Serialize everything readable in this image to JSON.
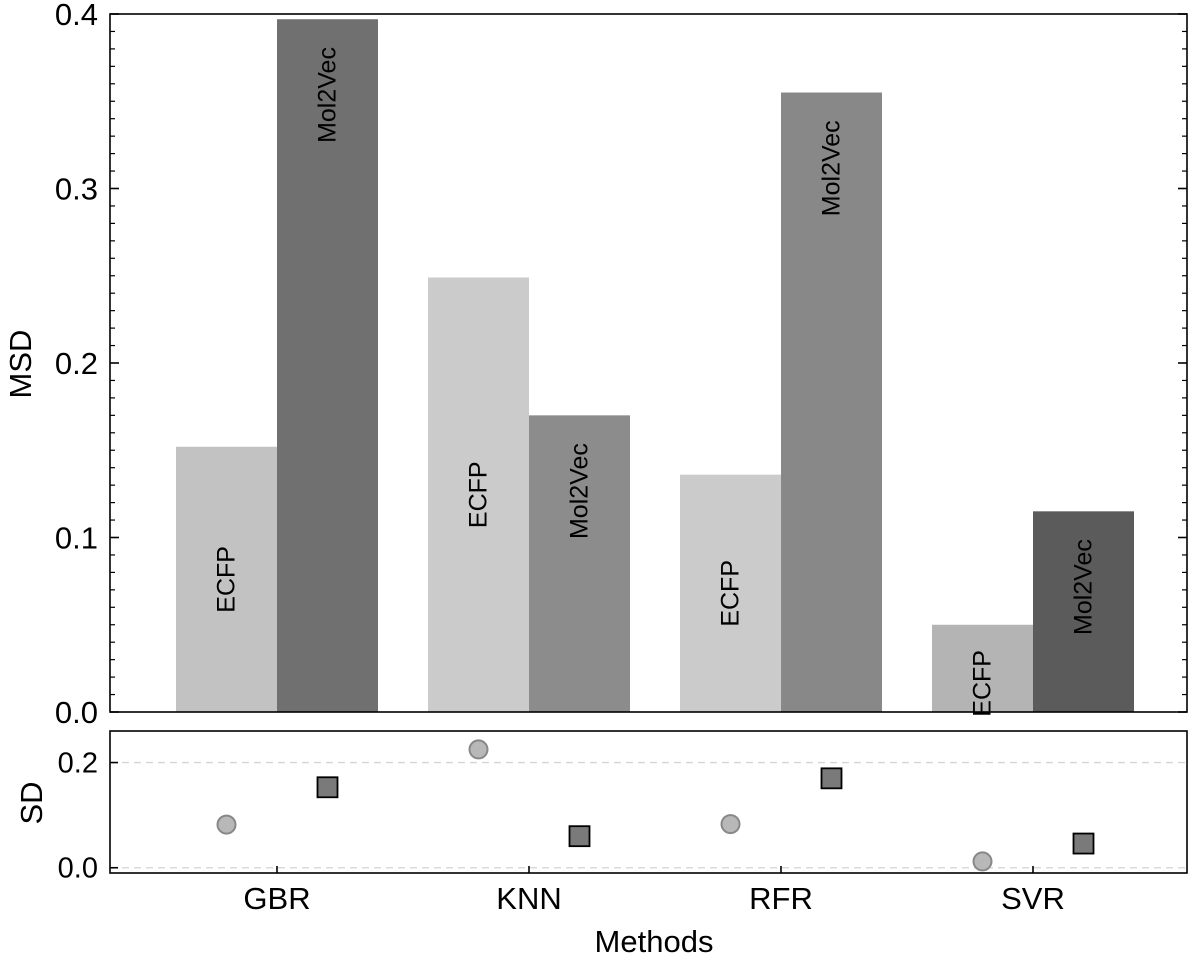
{
  "chart_data": {
    "type": "bar",
    "xlabel": "Methods",
    "categories": [
      "GBR",
      "KNN",
      "RFR",
      "SVR"
    ],
    "top_panel": {
      "ylabel": "MSD",
      "ylim": [
        0,
        0.4
      ],
      "yticks": [
        "0.0",
        "0.1",
        "0.2",
        "0.3",
        "0.4"
      ],
      "series": [
        {
          "name": "ECFP",
          "values": [
            0.152,
            0.249,
            0.136,
            0.05
          ],
          "colors": [
            "#c2c2c2",
            "#cbcbcb",
            "#cbcbcb",
            "#b4b4b4"
          ]
        },
        {
          "name": "Mol2Vec",
          "values": [
            0.397,
            0.17,
            0.355,
            0.115
          ],
          "colors": [
            "#707070",
            "#8c8c8c",
            "#888888",
            "#5b5b5b"
          ]
        }
      ]
    },
    "bottom_panel": {
      "type": "scatter",
      "ylabel": "SD",
      "ylim": [
        -0.01,
        0.26
      ],
      "yticks": [
        "0.0",
        "0.2"
      ],
      "grid": "dashed at 0.0 and 0.2",
      "series": [
        {
          "name": "ECFP",
          "marker": "circle",
          "values": [
            0.082,
            0.225,
            0.083,
            0.012
          ],
          "color": "#b8b8b8"
        },
        {
          "name": "Mol2Vec",
          "marker": "square",
          "values": [
            0.153,
            0.06,
            0.17,
            0.046
          ],
          "color": "#7a7a7a"
        }
      ]
    }
  }
}
